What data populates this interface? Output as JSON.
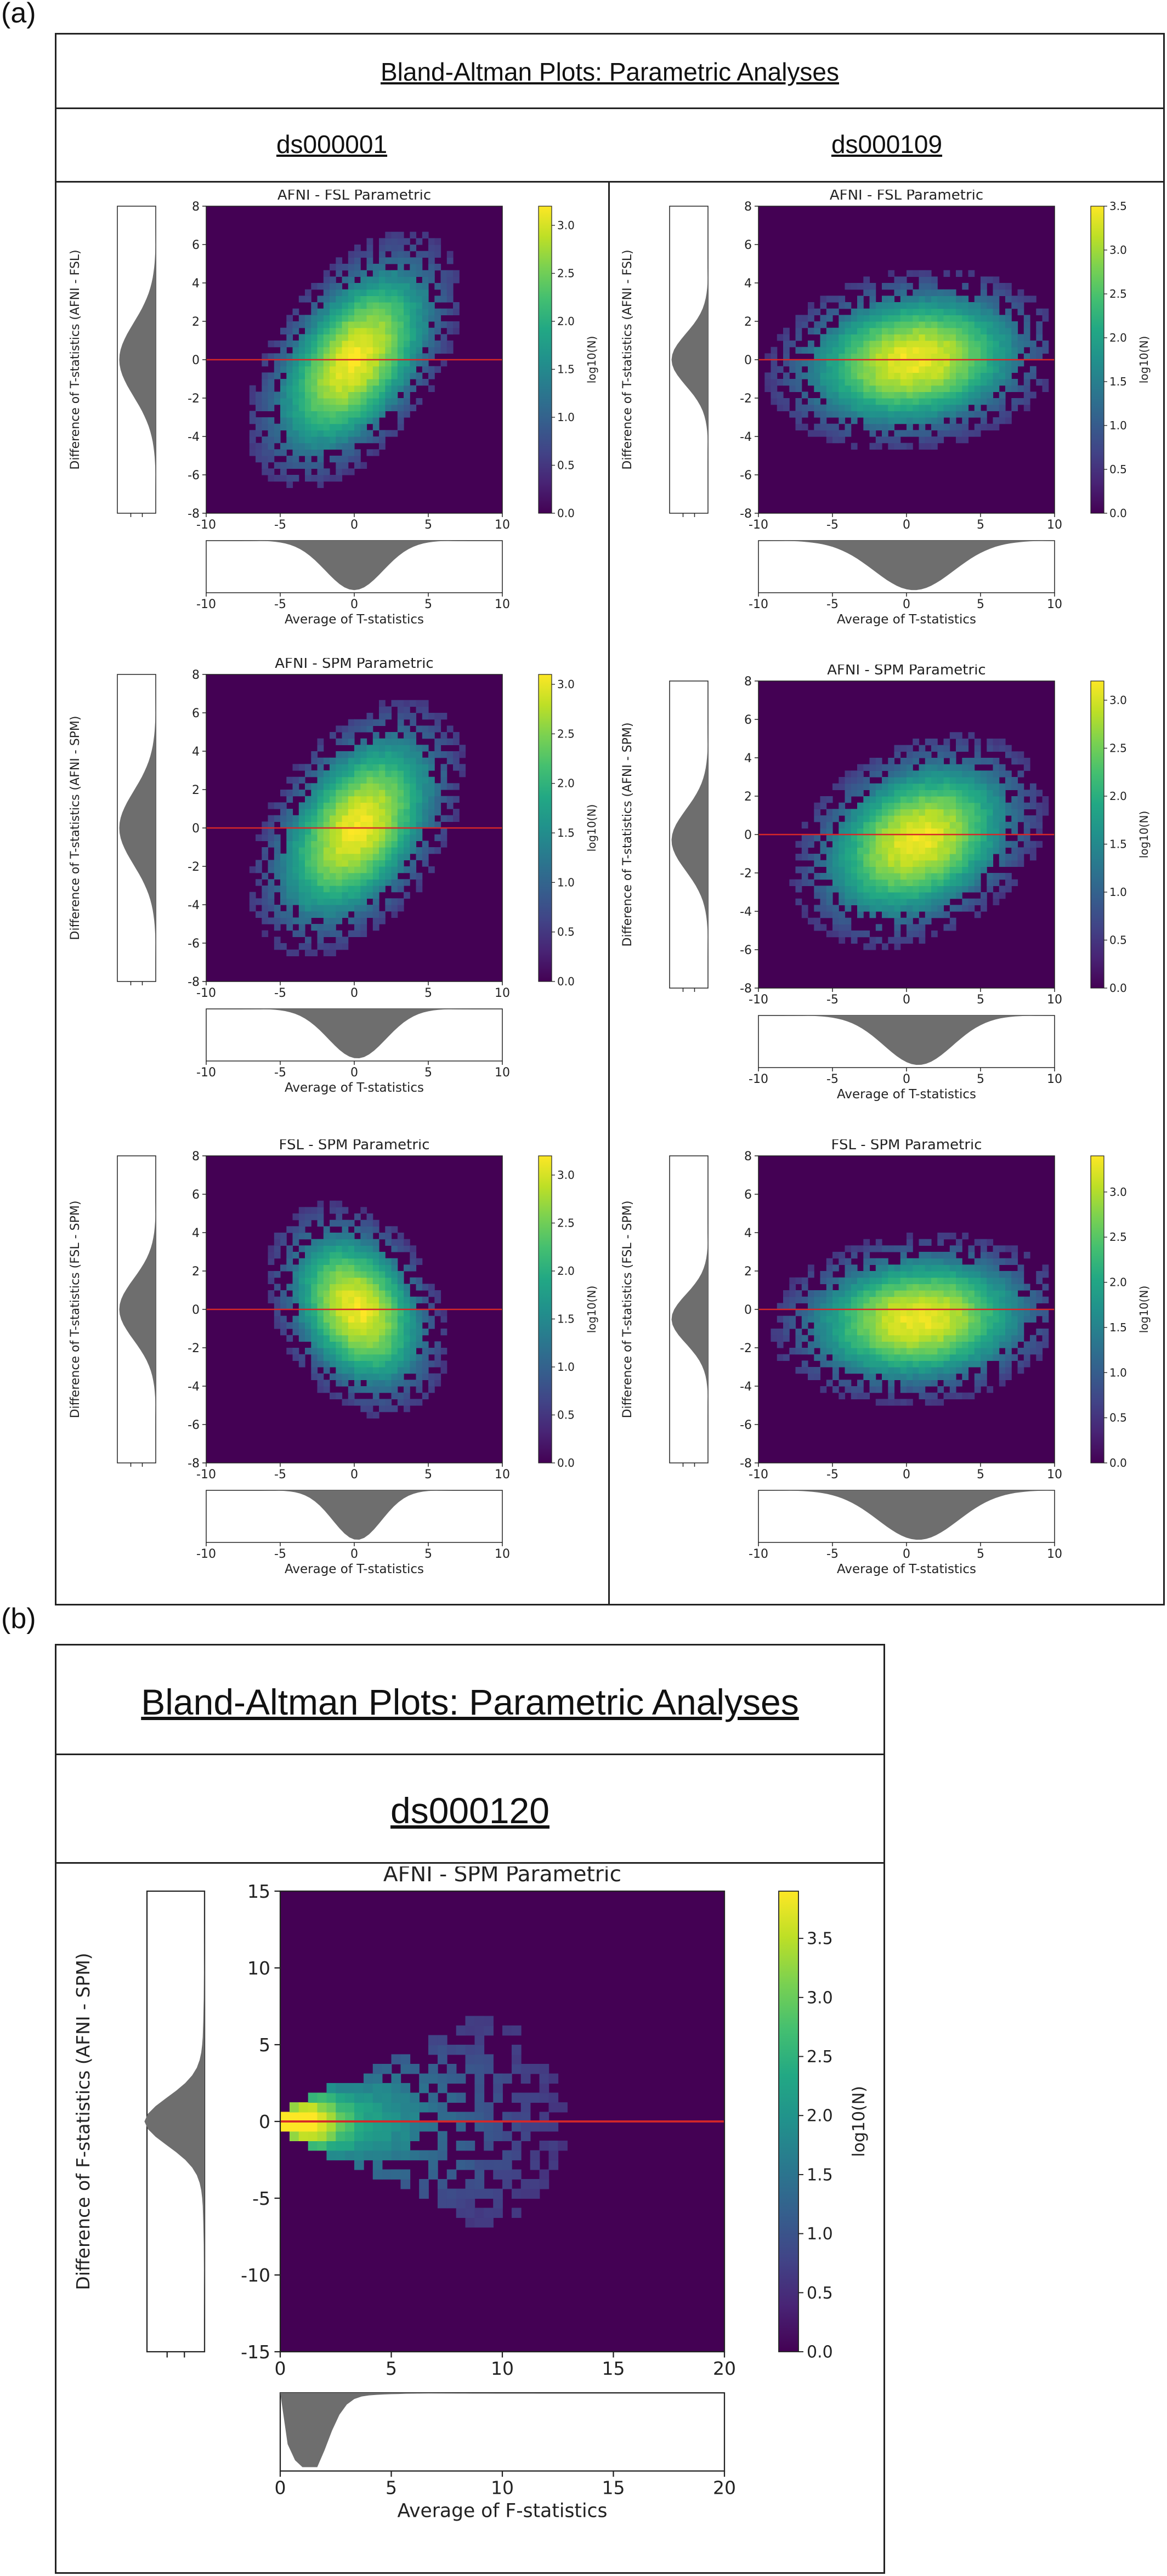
{
  "panel_a": {
    "letter": "(a)",
    "header": "Bland-Altman Plots: Parametric Analyses",
    "datasets": [
      "ds000001",
      "ds000109"
    ]
  },
  "panel_b": {
    "letter": "(b)",
    "header": "Bland-Altman Plots: Parametric Analyses",
    "dataset": "ds000120"
  },
  "colors": {
    "main_line": "#d62728",
    "hist_fill": "#6e6e6e",
    "cmap": "viridis",
    "bg": "#440154"
  },
  "chart_data": [
    {
      "type": "heatmap",
      "dataset": "ds000001",
      "title": "AFNI - FSL Parametric",
      "xlabel": "Average of T-statistics",
      "ylabel": "Difference of T-statistics (AFNI - FSL)",
      "colorbar_label": "log10(N)",
      "xlim": [
        -10,
        10
      ],
      "ylim": [
        -8,
        8
      ],
      "xticks": [
        -10,
        -5,
        0,
        5,
        10
      ],
      "yticks": [
        -8,
        -6,
        -4,
        -2,
        0,
        2,
        4,
        6,
        8
      ],
      "cbar_ticks": [
        "0.0",
        "0.5",
        "1.0",
        "1.5",
        "2.0",
        "2.5",
        "3.0"
      ],
      "cbar_max": 3.2,
      "reference_line_y": 0,
      "blob": {
        "cx": 0,
        "cy": 0,
        "sx": 2.6,
        "sy": 2.4,
        "rho": 0.5
      }
    },
    {
      "type": "heatmap",
      "dataset": "ds000109",
      "title": "AFNI - FSL Parametric",
      "xlabel": "Average of T-statistics",
      "ylabel": "Difference of T-statistics (AFNI - FSL)",
      "colorbar_label": "log10(N)",
      "xlim": [
        -10,
        10
      ],
      "ylim": [
        -8,
        8
      ],
      "xticks": [
        -10,
        -5,
        0,
        5,
        10
      ],
      "yticks": [
        -8,
        -6,
        -4,
        -2,
        0,
        2,
        4,
        6,
        8
      ],
      "cbar_ticks": [
        "0.0",
        "0.5",
        "1.0",
        "1.5",
        "2.0",
        "2.5",
        "3.0",
        "3.5"
      ],
      "cbar_max": 3.5,
      "reference_line_y": 0,
      "blob": {
        "cx": 0.5,
        "cy": 0,
        "sx": 3.6,
        "sy": 1.7,
        "rho": 0.15
      }
    },
    {
      "type": "heatmap",
      "dataset": "ds000001",
      "title": "AFNI - SPM Parametric",
      "xlabel": "Average of T-statistics",
      "ylabel": "Difference of T-statistics (AFNI - SPM)",
      "colorbar_label": "log10(N)",
      "xlim": [
        -10,
        10
      ],
      "ylim": [
        -8,
        8
      ],
      "xticks": [
        -10,
        -5,
        0,
        5,
        10
      ],
      "yticks": [
        -8,
        -6,
        -4,
        -2,
        0,
        2,
        4,
        6,
        8
      ],
      "cbar_ticks": [
        "0.0",
        "0.5",
        "1.0",
        "1.5",
        "2.0",
        "2.5",
        "3.0"
      ],
      "cbar_max": 3.1,
      "reference_line_y": 0,
      "blob": {
        "cx": 0.2,
        "cy": 0,
        "sx": 2.6,
        "sy": 2.4,
        "rho": 0.45
      }
    },
    {
      "type": "heatmap",
      "dataset": "ds000109",
      "title": "AFNI - SPM Parametric",
      "xlabel": "Average of T-statistics",
      "ylabel": "Difference of T-statistics (AFNI - SPM)",
      "colorbar_label": "log10(N)",
      "xlim": [
        -10,
        10
      ],
      "ylim": [
        -8,
        8
      ],
      "xticks": [
        -10,
        -5,
        0,
        5,
        10
      ],
      "yticks": [
        -8,
        -6,
        -4,
        -2,
        0,
        2,
        4,
        6,
        8
      ],
      "cbar_ticks": [
        "0.0",
        "0.5",
        "1.0",
        "1.5",
        "2.0",
        "2.5",
        "3.0"
      ],
      "cbar_max": 3.2,
      "reference_line_y": 0,
      "blob": {
        "cx": 0.8,
        "cy": -0.3,
        "sx": 3.1,
        "sy": 2.0,
        "rho": 0.3
      }
    },
    {
      "type": "heatmap",
      "dataset": "ds000001",
      "title": "FSL - SPM Parametric",
      "xlabel": "Average of T-statistics",
      "ylabel": "Difference of T-statistics (FSL - SPM)",
      "colorbar_label": "log10(N)",
      "xlim": [
        -10,
        10
      ],
      "ylim": [
        -8,
        8
      ],
      "xticks": [
        -10,
        -5,
        0,
        5,
        10
      ],
      "yticks": [
        -8,
        -6,
        -4,
        -2,
        0,
        2,
        4,
        6,
        8
      ],
      "cbar_ticks": [
        "0.0",
        "0.5",
        "1.0",
        "1.5",
        "2.0",
        "2.5",
        "3.0"
      ],
      "cbar_max": 3.2,
      "reference_line_y": 0,
      "blob": {
        "cx": 0.2,
        "cy": 0,
        "sx": 2.2,
        "sy": 2.0,
        "rho": -0.3
      }
    },
    {
      "type": "heatmap",
      "dataset": "ds000109",
      "title": "FSL - SPM Parametric",
      "xlabel": "Average of T-statistics",
      "ylabel": "Difference of T-statistics (FSL - SPM)",
      "colorbar_label": "log10(N)",
      "xlim": [
        -10,
        10
      ],
      "ylim": [
        -8,
        8
      ],
      "xticks": [
        -10,
        -5,
        0,
        5,
        10
      ],
      "yticks": [
        -8,
        -6,
        -4,
        -2,
        0,
        2,
        4,
        6,
        8
      ],
      "cbar_ticks": [
        "0.0",
        "0.5",
        "1.0",
        "1.5",
        "2.0",
        "2.5",
        "3.0"
      ],
      "cbar_max": 3.4,
      "reference_line_y": 0,
      "blob": {
        "cx": 0.8,
        "cy": -0.5,
        "sx": 3.6,
        "sy": 1.6,
        "rho": 0.1
      }
    },
    {
      "type": "heatmap",
      "dataset": "ds000120",
      "title": "AFNI - SPM Parametric",
      "xlabel": "Average of F-statistics",
      "ylabel": "Difference of F-statistics (AFNI - SPM)",
      "colorbar_label": "log10(N)",
      "xlim": [
        0,
        20
      ],
      "ylim": [
        -15,
        15
      ],
      "xticks": [
        0,
        5,
        10,
        15,
        20
      ],
      "yticks": [
        -15,
        -10,
        -5,
        0,
        5,
        10,
        15
      ],
      "cbar_ticks": [
        "0.0",
        "0.5",
        "1.0",
        "1.5",
        "2.0",
        "2.5",
        "3.0",
        "3.5"
      ],
      "cbar_max": 3.9,
      "reference_line_y": 0,
      "blob": {
        "cx": 0.8,
        "cy": 0,
        "sx": 0,
        "sy": 0,
        "rho": 0
      }
    }
  ]
}
